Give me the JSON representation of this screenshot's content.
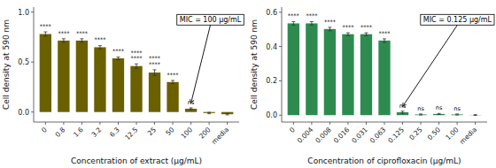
{
  "chart_data": [
    {
      "type": "bar",
      "categories": [
        "0",
        "0.8",
        "1.6",
        "3.2",
        "6.3",
        "12.5",
        "25",
        "50",
        "100",
        "200",
        "media"
      ],
      "values": [
        0.78,
        0.715,
        0.715,
        0.648,
        0.537,
        0.46,
        0.395,
        0.3,
        0.033,
        -0.01,
        -0.022
      ],
      "errors": [
        0.022,
        0.018,
        0.018,
        0.016,
        0.013,
        0.022,
        0.028,
        0.016,
        0.009,
        0.007,
        0.007
      ],
      "significance": [
        "****",
        "****",
        "****",
        "****",
        "****",
        "****\n****",
        "****\n****",
        "****",
        "ns",
        null,
        null
      ],
      "color": "#6b6000",
      "xlabel": "Concentration of extract (μg/mL)",
      "ylabel": "Cell density at 590 nm",
      "ylim": [
        -0.1,
        1.05
      ],
      "yticks": [
        {
          "value": 0,
          "label": "0.0"
        },
        0.5,
        {
          "value": 1,
          "label": "1.0"
        }
      ],
      "annotations": [
        {
          "text": "MIC = 100 μg/mL",
          "category": "100"
        }
      ]
    },
    {
      "type": "bar",
      "categories": [
        "0",
        "0.004",
        "0.008",
        "0.016",
        "0.031",
        "0.063",
        "0.125",
        "0.25",
        "0.50",
        "1.00",
        "media"
      ],
      "values": [
        0.535,
        0.535,
        0.502,
        0.472,
        0.472,
        0.435,
        0.017,
        0.004,
        0.007,
        0.004,
        0.001
      ],
      "errors": [
        0.01,
        0.01,
        0.01,
        0.008,
        0.008,
        0.01,
        0.006,
        0.003,
        0.003,
        0.003,
        0.002
      ],
      "significance": [
        "****",
        "****",
        "****",
        "****",
        "****",
        "****",
        "ns",
        "ns",
        "ns",
        "ns",
        null
      ],
      "color": "#2e8b50",
      "xlabel": "Concentration of ciprofloxacin (μg/mL)",
      "ylabel": "Cell density at 590 nm",
      "ylim": [
        -0.04,
        0.63
      ],
      "yticks": [
        {
          "value": 0,
          "label": "0.0"
        },
        0.2,
        0.4,
        0.6
      ],
      "annotations": [
        {
          "text": "MIC = 0.125 μg/mL",
          "category": "0.125"
        }
      ]
    }
  ]
}
